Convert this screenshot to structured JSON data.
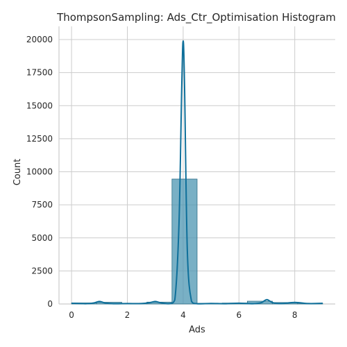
{
  "chart_data": {
    "type": "bar",
    "title": "ThompsonSampling: Ads_Ctr_Optimisation Histogram",
    "xlabel": "Ads",
    "ylabel": "Count",
    "xlim": [
      -0.45,
      9.45
    ],
    "ylim": [
      0,
      21000
    ],
    "x_ticks": [
      0,
      2,
      4,
      6,
      8
    ],
    "y_ticks": [
      0,
      2500,
      5000,
      7500,
      10000,
      12500,
      15000,
      17500,
      20000
    ],
    "grid": true,
    "bars": [
      {
        "x0": 0.0,
        "x1": 0.9,
        "value": 80
      },
      {
        "x0": 0.9,
        "x1": 1.8,
        "value": 130
      },
      {
        "x0": 1.8,
        "x1": 2.7,
        "value": 60
      },
      {
        "x0": 2.7,
        "x1": 3.6,
        "value": 140
      },
      {
        "x0": 3.6,
        "x1": 4.5,
        "value": 9450
      },
      {
        "x0": 4.5,
        "x1": 5.4,
        "value": 50
      },
      {
        "x0": 5.4,
        "x1": 6.3,
        "value": 70
      },
      {
        "x0": 6.3,
        "x1": 7.2,
        "value": 210
      },
      {
        "x0": 7.2,
        "x1": 8.1,
        "value": 110
      },
      {
        "x0": 8.1,
        "x1": 9.0,
        "value": 60
      }
    ],
    "kde": {
      "x": [
        0.0,
        0.5,
        0.8,
        1.0,
        1.2,
        1.5,
        2.0,
        2.5,
        2.8,
        3.0,
        3.2,
        3.5,
        3.7,
        3.85,
        3.95,
        4.0,
        4.05,
        4.15,
        4.3,
        4.5,
        5.0,
        5.5,
        6.0,
        6.5,
        6.8,
        7.0,
        7.2,
        7.5,
        8.0,
        8.5,
        9.0
      ],
      "y": [
        60,
        20,
        80,
        190,
        80,
        20,
        30,
        30,
        100,
        190,
        90,
        20,
        300,
        6000,
        16500,
        19900,
        16500,
        4000,
        200,
        20,
        40,
        20,
        60,
        20,
        100,
        330,
        110,
        30,
        120,
        30,
        50
      ]
    },
    "colors": {
      "bar_fill": "#4c96b1",
      "bar_edge": "#2f6f88",
      "kde_line": "#0e6f9a"
    }
  }
}
